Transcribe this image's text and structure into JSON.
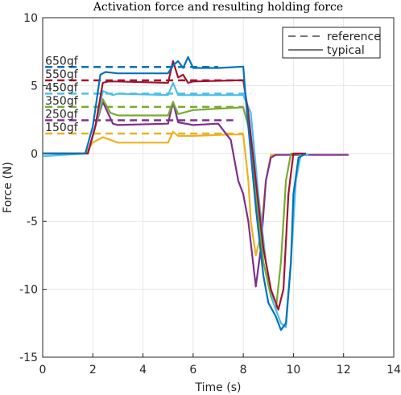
{
  "chart_data": {
    "type": "line",
    "title": "Activation force and resulting holding force",
    "xlabel": "Time (s)",
    "ylabel": "Force (N)",
    "xlim": [
      0,
      14
    ],
    "ylim": [
      -15,
      10
    ],
    "xticks": [
      0,
      2,
      4,
      6,
      8,
      10,
      12,
      14
    ],
    "yticks": [
      -15,
      -10,
      -5,
      0,
      5,
      10
    ],
    "grid": true,
    "legend": {
      "position": "upper right",
      "entries": [
        "reference",
        "typical"
      ]
    },
    "series": [
      {
        "name": "650gf",
        "color": "#0072bd",
        "reference": 6.37,
        "reference_x": [
          0.1,
          7.0
        ],
        "x": [
          0,
          0.2,
          1.7,
          2.0,
          2.3,
          2.5,
          3,
          4,
          5,
          5.2,
          5.4,
          5.6,
          5.8,
          6,
          7,
          8,
          8.1,
          8.3,
          8.5,
          8.8,
          9,
          9.3,
          9.5,
          9.7,
          9.9,
          10,
          10.2,
          10.5
        ],
        "values": [
          0,
          0,
          0,
          2,
          5.8,
          6.0,
          5.9,
          5.9,
          5.9,
          6.5,
          6.8,
          6.3,
          7.1,
          6.3,
          6.3,
          6.4,
          4,
          0,
          -4,
          -9,
          -11,
          -12,
          -13,
          -12.5,
          -8,
          -3,
          -0.3,
          0
        ]
      },
      {
        "name": "550gf",
        "color": "#a2142f",
        "reference": 5.39,
        "reference_x": [
          0.1,
          8.0
        ],
        "x": [
          0,
          1.8,
          2.1,
          2.4,
          2.6,
          3,
          5,
          5.2,
          5.4,
          5.6,
          5.8,
          6,
          8,
          8.2,
          8.5,
          8.8,
          9.1,
          9.4,
          9.6,
          9.8,
          10,
          10.5
        ],
        "values": [
          0,
          0,
          2,
          5.2,
          5.3,
          5.3,
          5.2,
          6.8,
          5.6,
          5.8,
          5.2,
          5.3,
          5.4,
          3,
          -2,
          -7,
          -10,
          -11.5,
          -10,
          -3,
          0,
          0
        ]
      },
      {
        "name": "450gf",
        "color": "#4dbeee",
        "reference": 4.41,
        "reference_x": [
          0.1,
          8.3
        ],
        "x": [
          0,
          1.8,
          2.1,
          2.4,
          2.8,
          3,
          5,
          5.2,
          5.4,
          6,
          8,
          8.3,
          8.6,
          8.9,
          9.2,
          9.5,
          9.7,
          9.9,
          10.1,
          10.3,
          10.6
        ],
        "values": [
          -0.2,
          0,
          2,
          4.6,
          4.3,
          4.4,
          4.3,
          5.2,
          4.3,
          4.3,
          4.3,
          3,
          -3,
          -8,
          -11,
          -12.5,
          -12.8,
          -8,
          -2,
          0,
          -0.1
        ]
      },
      {
        "name": "350gf",
        "color": "#77ac30",
        "reference": 3.43,
        "reference_x": [
          0.1,
          8.0
        ],
        "x": [
          0,
          1.8,
          2.1,
          2.4,
          2.7,
          3,
          5,
          5.2,
          5.4,
          6,
          8,
          8.2,
          8.5,
          8.8,
          9.1,
          9.3,
          9.5,
          9.7,
          9.9,
          10.5
        ],
        "values": [
          0,
          0,
          2,
          4,
          3.0,
          2.8,
          2.8,
          3.8,
          2.9,
          3.2,
          3.4,
          2,
          -3,
          -8,
          -10.5,
          -11.5,
          -8,
          -2,
          0,
          -0.1
        ]
      },
      {
        "name": "250gf",
        "color": "#7e2f8e",
        "reference": 2.45,
        "reference_x": [
          0.1,
          7.6
        ],
        "x": [
          0,
          1.8,
          2.1,
          2.4,
          2.8,
          3,
          5,
          5.2,
          5.4,
          6,
          7,
          7.5,
          7.8,
          8,
          8.2,
          8.5,
          8.7,
          8.9,
          9.1,
          9.3,
          12.2
        ],
        "values": [
          0,
          0,
          2,
          3.8,
          2.2,
          2.1,
          2.2,
          3.8,
          2.3,
          2.1,
          2.2,
          1,
          -2,
          -3,
          -5,
          -9.8,
          -7,
          -2,
          -0.3,
          -0.1,
          -0.1
        ]
      },
      {
        "name": "150gf",
        "color": "#edb120",
        "reference": 1.47,
        "reference_x": [
          0.1,
          8.0
        ],
        "x": [
          0,
          1.7,
          2.0,
          2.4,
          3,
          5,
          5.2,
          5.4,
          6,
          7.5,
          8,
          8.2,
          8.3,
          8.5,
          8.7,
          8.9,
          9.1,
          9.5
        ],
        "values": [
          0,
          0,
          0.8,
          1.2,
          0.8,
          0.8,
          1.6,
          1.3,
          1.3,
          1.4,
          1.4,
          -2,
          -5,
          -7.5,
          -6,
          -2,
          -0.1,
          -0.1
        ]
      }
    ]
  }
}
